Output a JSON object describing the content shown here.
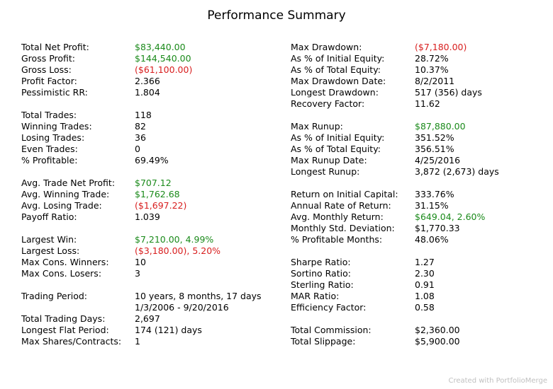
{
  "title": "Performance Summary",
  "left_groups": [
    [
      {
        "label": "Total Net Profit:",
        "value": "$83,440.00",
        "tone": "pos"
      },
      {
        "label": "Gross Profit:",
        "value": "$144,540.00",
        "tone": "pos"
      },
      {
        "label": "Gross Loss:",
        "value": "($61,100.00)",
        "tone": "neg"
      },
      {
        "label": "Profit Factor:",
        "value": "2.366",
        "tone": ""
      },
      {
        "label": "Pessimistic RR:",
        "value": "1.804",
        "tone": ""
      }
    ],
    [
      {
        "label": "Total Trades:",
        "value": "118",
        "tone": ""
      },
      {
        "label": "Winning Trades:",
        "value": "82",
        "tone": ""
      },
      {
        "label": "Losing Trades:",
        "value": "36",
        "tone": ""
      },
      {
        "label": "Even Trades:",
        "value": "0",
        "tone": ""
      },
      {
        "label": "% Profitable:",
        "value": "69.49%",
        "tone": ""
      }
    ],
    [
      {
        "label": "Avg. Trade Net Profit:",
        "value": "$707.12",
        "tone": "pos"
      },
      {
        "label": "Avg. Winning Trade:",
        "value": "$1,762.68",
        "tone": "pos"
      },
      {
        "label": "Avg. Losing Trade:",
        "value": "($1,697.22)",
        "tone": "neg"
      },
      {
        "label": "Payoff Ratio:",
        "value": "1.039",
        "tone": ""
      }
    ],
    [
      {
        "label": "Largest Win:",
        "value": "$7,210.00, 4.99%",
        "tone": "pos"
      },
      {
        "label": "Largest Loss:",
        "value": "($3,180.00), 5.20%",
        "tone": "neg"
      },
      {
        "label": "Max Cons. Winners:",
        "value": "10",
        "tone": ""
      },
      {
        "label": "Max Cons. Losers:",
        "value": "3",
        "tone": ""
      }
    ],
    [
      {
        "label": "Trading Period:",
        "value": "10 years, 8 months, 17 days",
        "tone": ""
      },
      {
        "label": "",
        "value": "1/3/2006 - 9/20/2016",
        "tone": ""
      },
      {
        "label": "Total Trading Days:",
        "value": "2,697",
        "tone": ""
      },
      {
        "label": "Longest Flat Period:",
        "value": "174 (121) days",
        "tone": ""
      },
      {
        "label": "Max Shares/Contracts:",
        "value": "1",
        "tone": ""
      }
    ]
  ],
  "right_groups": [
    [
      {
        "label": "Max Drawdown:",
        "value": "($7,180.00)",
        "tone": "neg"
      },
      {
        "label": "As % of Initial Equity:",
        "value": "28.72%",
        "tone": ""
      },
      {
        "label": "As % of Total Equity:",
        "value": "10.37%",
        "tone": ""
      },
      {
        "label": "Max Drawdown Date:",
        "value": "8/2/2011",
        "tone": ""
      },
      {
        "label": "Longest Drawdown:",
        "value": "517 (356) days",
        "tone": ""
      },
      {
        "label": "Recovery Factor:",
        "value": "11.62",
        "tone": ""
      }
    ],
    [
      {
        "label": "Max Runup:",
        "value": "$87,880.00",
        "tone": "pos"
      },
      {
        "label": "As % of Initial Equity:",
        "value": "351.52%",
        "tone": ""
      },
      {
        "label": "As % of Total Equity:",
        "value": "356.51%",
        "tone": ""
      },
      {
        "label": "Max Runup Date:",
        "value": "4/25/2016",
        "tone": ""
      },
      {
        "label": "Longest Runup:",
        "value": "3,872 (2,673) days",
        "tone": ""
      }
    ],
    [
      {
        "label": "Return on Initial Capital:",
        "value": "333.76%",
        "tone": ""
      },
      {
        "label": "Annual Rate of Return:",
        "value": "31.15%",
        "tone": ""
      },
      {
        "label": "Avg. Monthly Return:",
        "value": "$649.04, 2.60%",
        "tone": "pos"
      },
      {
        "label": "Monthly Std. Deviation:",
        "value": "$1,770.33",
        "tone": ""
      },
      {
        "label": "% Profitable Months:",
        "value": "48.06%",
        "tone": ""
      }
    ],
    [
      {
        "label": "Sharpe Ratio:",
        "value": "1.27",
        "tone": ""
      },
      {
        "label": "Sortino Ratio:",
        "value": "2.30",
        "tone": ""
      },
      {
        "label": "Sterling Ratio:",
        "value": "0.91",
        "tone": ""
      },
      {
        "label": "MAR Ratio:",
        "value": "1.08",
        "tone": ""
      },
      {
        "label": "Efficiency Factor:",
        "value": "0.58",
        "tone": ""
      }
    ],
    [
      {
        "label": "Total Commission:",
        "value": "$2,360.00",
        "tone": ""
      },
      {
        "label": "Total Slippage:",
        "value": "$5,900.00",
        "tone": ""
      }
    ]
  ],
  "footer": "Created with PortfolioMerge"
}
